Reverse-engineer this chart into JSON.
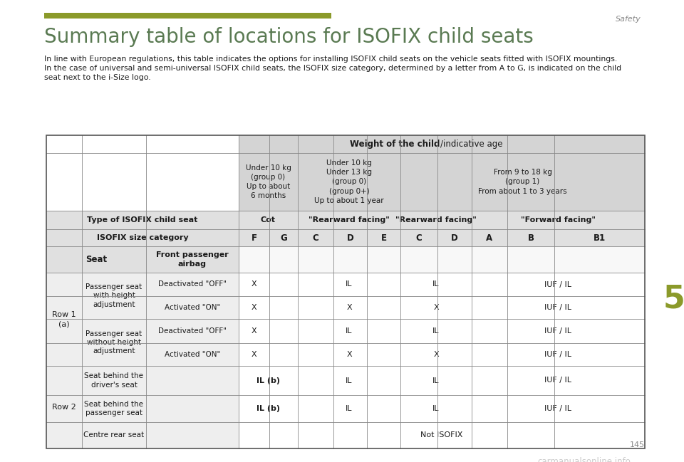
{
  "title": "Summary table of locations for ISOFIX child seats",
  "page_label": "Safety",
  "page_number": "145",
  "chapter_number": "5",
  "body_text_line1": "In line with European regulations, this table indicates the options for installing ISOFIX child seats on the vehicle seats fitted with ISOFIX mountings.",
  "body_text_line2": "In the case of universal and semi-universal ISOFIX child seats, the ISOFIX size category, determined by a letter from A to G, is indicated on the child",
  "body_text_line3": "seat next to the i-Size logo.",
  "olive_bar_color": "#8B9A2A",
  "header_bg": "#D4D4D4",
  "subheader_bg": "#E0E0E0",
  "data_left_bg": "#EEEEEE",
  "data_right_bg": "#FFFFFF",
  "border_color": "#888888",
  "text_color": "#1A1A1A",
  "title_color": "#5A7A52",
  "chapter_color": "#8B9A2A",
  "safety_color": "#888888"
}
